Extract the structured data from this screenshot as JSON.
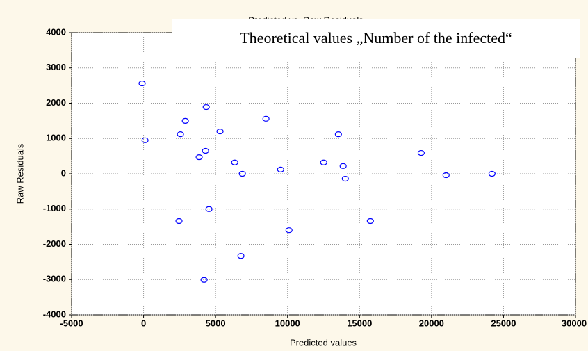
{
  "chart_data": {
    "type": "scatter",
    "title": "Predicted vs. Raw Residuals",
    "annotation": "Theoretical values „Number of the infected“",
    "xlabel": "Predicted values",
    "ylabel": "Raw Residuals",
    "color": "#0000ff",
    "grid": true,
    "x": [
      -100,
      100,
      2560,
      2900,
      2460,
      3860,
      4300,
      4350,
      4540,
      4200,
      5310,
      6330,
      6860,
      6760,
      8500,
      9520,
      10100,
      12510,
      13530,
      13860,
      14010,
      15750,
      19280,
      21010,
      24200
    ],
    "y": [
      2560,
      950,
      1120,
      1500,
      -1340,
      470,
      650,
      1890,
      -1000,
      -3010,
      1200,
      320,
      0,
      -2330,
      1560,
      120,
      -1600,
      320,
      1120,
      220,
      -140,
      -1340,
      590,
      -40,
      0
    ],
    "xlim": [
      -5000,
      30000
    ],
    "xticks": [
      -5000,
      0,
      5000,
      10000,
      15000,
      20000,
      25000,
      30000
    ],
    "ylim": [
      -4000,
      4000
    ],
    "yticks": [
      -4000,
      -3000,
      -2000,
      -1000,
      0,
      1000,
      2000,
      3000,
      4000
    ]
  }
}
